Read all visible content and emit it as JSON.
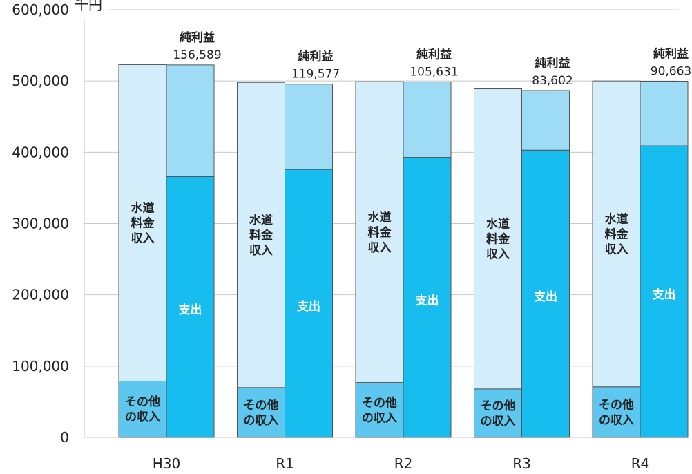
{
  "chart_data": {
    "type": "bar",
    "unit": "千円",
    "ylim": [
      0,
      600000
    ],
    "yticks": [
      "0",
      "100,000",
      "200,000",
      "300,000",
      "400,000",
      "500,000",
      "600,000"
    ],
    "ytick_values": [
      0,
      100000,
      200000,
      300000,
      400000,
      500000,
      600000
    ],
    "grid": true,
    "categories": [
      "H30",
      "R1",
      "R2",
      "R3",
      "R4"
    ],
    "revenue_series": [
      {
        "name": "その他の収入",
        "label_lines": [
          "その他",
          "の収入"
        ],
        "color": "#5ec7ef",
        "values": [
          79000,
          70000,
          77000,
          68000,
          71000
        ]
      },
      {
        "name": "水道料金収入",
        "label_lines": [
          "水道",
          "料金",
          "収入"
        ],
        "color": "#d4edfb",
        "values": [
          444000,
          428000,
          422000,
          421000,
          429000
        ]
      }
    ],
    "expense_series": [
      {
        "name": "支出",
        "label_lines": [
          "支出"
        ],
        "color": "#17bdee",
        "values": [
          366000,
          376000,
          393000,
          403000,
          409000
        ]
      },
      {
        "name": "純利益",
        "label_lines": [
          "純利益"
        ],
        "color": "#9edbf5",
        "values": [
          156589,
          119577,
          105631,
          83602,
          90663
        ]
      }
    ],
    "profit_labels": [
      "156,589",
      "119,577",
      "105,631",
      "83,602",
      "90,663"
    ],
    "profit_title": "純利益"
  }
}
